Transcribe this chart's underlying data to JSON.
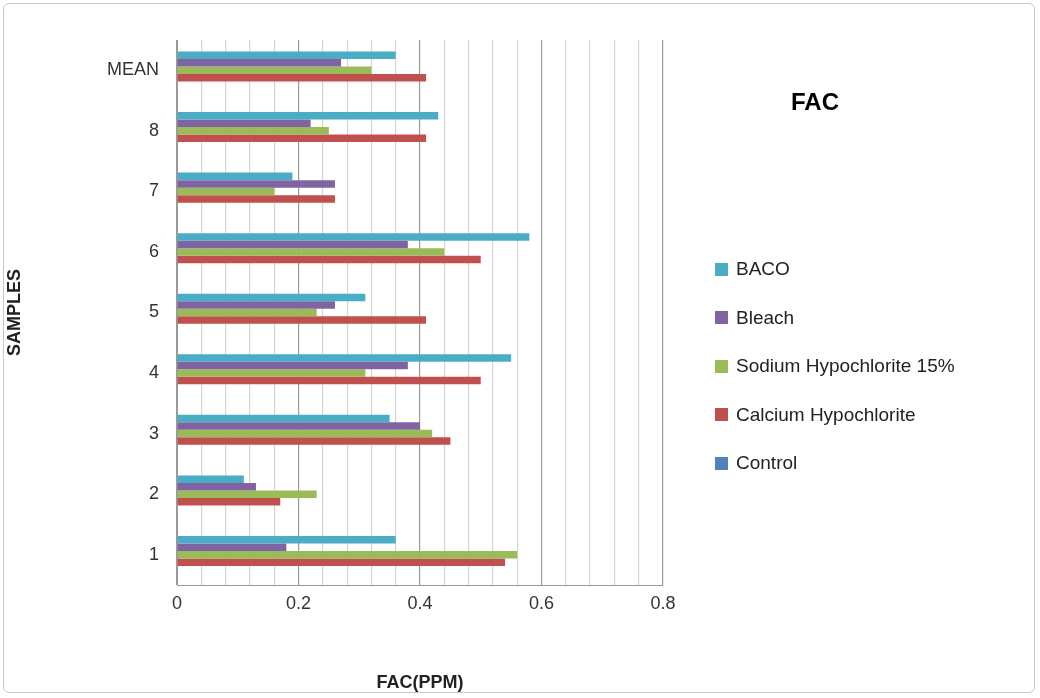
{
  "chart_data": {
    "type": "bar",
    "orientation": "horizontal",
    "title": "FAC",
    "xlabel": "FAC(PPM)",
    "ylabel": "SAMPLES",
    "categories": [
      "MEAN",
      "8",
      "7",
      "6",
      "5",
      "4",
      "3",
      "2",
      "1"
    ],
    "series": [
      {
        "name": "BACO",
        "color": "#4bacc6",
        "values": [
          0.36,
          0.43,
          0.19,
          0.58,
          0.31,
          0.55,
          0.35,
          0.11,
          0.36
        ]
      },
      {
        "name": "Bleach",
        "color": "#8064a2",
        "values": [
          0.27,
          0.22,
          0.26,
          0.38,
          0.26,
          0.38,
          0.4,
          0.13,
          0.18
        ]
      },
      {
        "name": "Sodium Hypochlorite 15%",
        "color": "#9bbb59",
        "values": [
          0.32,
          0.25,
          0.16,
          0.44,
          0.23,
          0.31,
          0.42,
          0.23,
          0.56
        ]
      },
      {
        "name": "Calcium Hypochlorite",
        "color": "#c0504d",
        "values": [
          0.41,
          0.41,
          0.26,
          0.5,
          0.41,
          0.5,
          0.45,
          0.17,
          0.54
        ]
      },
      {
        "name": "Control",
        "color": "#4f81bd",
        "values": [
          0,
          0,
          0,
          0,
          0,
          0,
          0,
          0,
          0
        ]
      }
    ],
    "xlim": [
      0,
      0.8
    ],
    "xticks": [
      0,
      {
        "value": 0.04,
        "label": null
      },
      {
        "value": 0.08,
        "label": null
      },
      {
        "value": 0.12,
        "label": null
      },
      {
        "value": 0.16,
        "label": null
      },
      0.2,
      {
        "value": 0.24,
        "label": null
      },
      {
        "value": 0.28,
        "label": null
      },
      {
        "value": 0.32,
        "label": null
      },
      {
        "value": 0.36,
        "label": null
      },
      0.4,
      {
        "value": 0.44,
        "label": null
      },
      {
        "value": 0.48,
        "label": null
      },
      {
        "value": 0.52,
        "label": null
      },
      {
        "value": 0.56,
        "label": null
      },
      0.6,
      {
        "value": 0.64,
        "label": null
      },
      {
        "value": 0.68,
        "label": null
      },
      {
        "value": 0.72,
        "label": null
      },
      {
        "value": 0.76,
        "label": null
      },
      0.8
    ],
    "grid": "x",
    "legend": "right"
  }
}
